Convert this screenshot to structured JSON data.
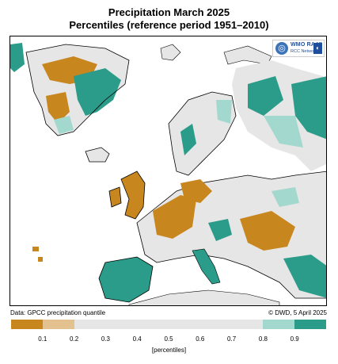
{
  "title": "Precipitation March 2025",
  "subtitle": "Percentiles (reference period 1951–2010)",
  "logo": {
    "name": "WMO RA VI",
    "sub": "RCC Network",
    "globe": "globe-icon",
    "dwd": "dwd-logo"
  },
  "footer": {
    "source": "Data: GPCC precipitation quantile",
    "credit": "© DWD, 5 April 2025"
  },
  "legend": {
    "colors": [
      "#c8861f",
      "#e3c290",
      "#e6e6e6",
      "#e6e6e6",
      "#e6e6e6",
      "#e6e6e6",
      "#e6e6e6",
      "#e6e6e6",
      "#a2d8cd",
      "#2a9c89"
    ],
    "ticks": [
      "0.1",
      "0.2",
      "0.3",
      "0.4",
      "0.5",
      "0.6",
      "0.7",
      "0.8",
      "0.9"
    ],
    "unit": "[percentiles]"
  },
  "map_colors": {
    "dry": "#c8861f",
    "light_dry": "#e3c290",
    "normal": "#e6e6e6",
    "light_wet": "#a2d8cd",
    "wet": "#2a9c89",
    "border": "#000000"
  }
}
